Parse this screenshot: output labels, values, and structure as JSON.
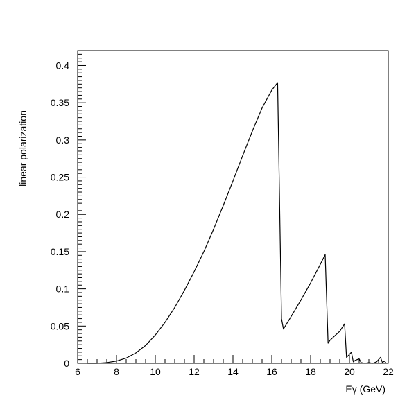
{
  "chart_data": {
    "type": "line",
    "title": "",
    "xlabel": "Eγ (GeV)",
    "ylabel": "linear polarization",
    "xlim": [
      6,
      22
    ],
    "ylim": [
      0,
      0.42
    ],
    "xticks": [
      6,
      8,
      10,
      12,
      14,
      16,
      18,
      20,
      22
    ],
    "xtick_labels": [
      "6",
      "8",
      "10",
      "12",
      "14",
      "16",
      "18",
      "20",
      "22"
    ],
    "yticks": [
      0,
      0.05,
      0.1,
      0.15,
      0.2,
      0.25,
      0.3,
      0.35,
      0.4
    ],
    "ytick_labels": [
      "0",
      "0.05",
      "0.1",
      "0.15",
      "0.2",
      "0.25",
      "0.3",
      "0.35",
      "0.4"
    ],
    "grid": false,
    "legend": "none",
    "series": [
      {
        "color": "#000000",
        "x": [
          6.5,
          7.0,
          7.5,
          8.0,
          8.5,
          9.0,
          9.5,
          10.0,
          10.5,
          11.0,
          11.5,
          12.0,
          12.5,
          13.0,
          13.5,
          14.0,
          14.5,
          15.0,
          15.5,
          16.0,
          16.3,
          16.5,
          16.6,
          17.0,
          17.5,
          18.0,
          18.5,
          18.75,
          18.9,
          19.0,
          19.5,
          19.75,
          19.85,
          20.0,
          20.1,
          20.2,
          20.3,
          20.5,
          20.6,
          20.8,
          21.0,
          21.2,
          21.4,
          21.6,
          21.7,
          21.8,
          21.9
        ],
        "y": [
          0.0,
          0.0,
          0.001,
          0.003,
          0.007,
          0.014,
          0.024,
          0.038,
          0.055,
          0.075,
          0.098,
          0.123,
          0.15,
          0.18,
          0.212,
          0.245,
          0.279,
          0.312,
          0.343,
          0.367,
          0.377,
          0.06,
          0.046,
          0.063,
          0.085,
          0.108,
          0.133,
          0.146,
          0.027,
          0.031,
          0.043,
          0.053,
          0.008,
          0.012,
          0.015,
          0.002,
          0.004,
          0.006,
          0.001,
          0.0,
          0.001,
          0.0,
          0.002,
          0.008,
          0.001,
          0.003,
          0.0
        ]
      }
    ]
  }
}
